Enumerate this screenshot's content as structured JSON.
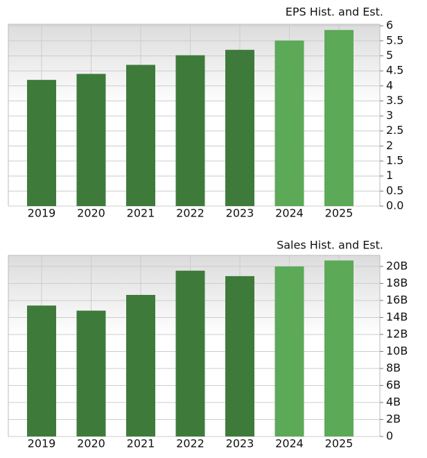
{
  "chart_data": [
    {
      "type": "bar",
      "title": "EPS Hist. and Est.",
      "categories": [
        "2019",
        "2020",
        "2021",
        "2022",
        "2023",
        "2024",
        "2025"
      ],
      "values": [
        4.2,
        4.4,
        4.7,
        5.02,
        5.2,
        5.51,
        5.86
      ],
      "colors": [
        "#3e7b3b",
        "#3e7b3b",
        "#3e7b3b",
        "#3e7b3b",
        "#3e7b3b",
        "#5ca958",
        "#5ca958"
      ],
      "ylim": [
        0,
        6.05
      ],
      "yticks": [
        {
          "value": 0,
          "label": "0.0"
        },
        0.5,
        1,
        1.5,
        2,
        2.5,
        3,
        3.5,
        4,
        4.5,
        5,
        5.5,
        6
      ],
      "grid": true
    },
    {
      "type": "bar",
      "title": "Sales Hist. and Est.",
      "categories": [
        "2019",
        "2020",
        "2021",
        "2022",
        "2023",
        "2024",
        "2025"
      ],
      "values": [
        15400000000,
        14800000000,
        16650000000,
        19500000000,
        18860000000,
        20000000000,
        20700000000
      ],
      "colors": [
        "#3e7b3b",
        "#3e7b3b",
        "#3e7b3b",
        "#3e7b3b",
        "#3e7b3b",
        "#5ca958",
        "#5ca958"
      ],
      "ylim": [
        0,
        21300000000
      ],
      "yticks": [
        0,
        {
          "value": 2000000000,
          "label": "2B"
        },
        {
          "value": 4000000000,
          "label": "4B"
        },
        {
          "value": 6000000000,
          "label": "6B"
        },
        {
          "value": 8000000000,
          "label": "8B"
        },
        {
          "value": 10000000000,
          "label": "10B"
        },
        {
          "value": 12000000000,
          "label": "12B"
        },
        {
          "value": 14000000000,
          "label": "14B"
        },
        {
          "value": 16000000000,
          "label": "16B"
        },
        {
          "value": 18000000000,
          "label": "18B"
        },
        {
          "value": 20000000000,
          "label": "20B"
        }
      ],
      "grid": true
    }
  ]
}
